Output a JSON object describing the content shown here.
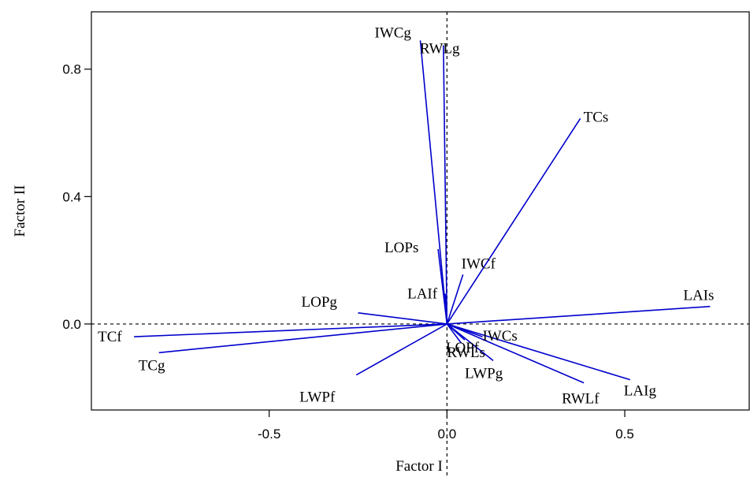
{
  "chart_data": {
    "type": "scatter",
    "subtype": "biplot-vectors",
    "xlabel": "Factor I",
    "ylabel": "Factor II",
    "xlim": [
      -1.0,
      0.85
    ],
    "ylim": [
      -0.27,
      0.98
    ],
    "xticks": [
      {
        "value": -0.5,
        "label": "-0.5"
      },
      {
        "value": 0.0,
        "label": "0.0"
      },
      {
        "value": 0.5,
        "label": "0.5"
      }
    ],
    "yticks": [
      {
        "value": 0.0,
        "label": "0.0"
      },
      {
        "value": 0.4,
        "label": "0.4"
      },
      {
        "value": 0.8,
        "label": "0.8"
      }
    ],
    "reference_lines": {
      "x": 0,
      "y": 0,
      "style": "dashed"
    },
    "vector_color": "#0000cc",
    "vectors": [
      {
        "label": "IWCg",
        "x": -0.075,
        "y": 0.89
      },
      {
        "label": "RWLg",
        "x": -0.01,
        "y": 0.875
      },
      {
        "label": "TCs",
        "x": 0.375,
        "y": 0.645
      },
      {
        "label": "LOPs",
        "x": -0.025,
        "y": 0.235
      },
      {
        "label": "IWCf",
        "x": 0.045,
        "y": 0.155
      },
      {
        "label": "LAIf",
        "x": -0.005,
        "y": 0.095
      },
      {
        "label": "LAIs",
        "x": 0.74,
        "y": 0.055
      },
      {
        "label": "LOPg",
        "x": -0.25,
        "y": 0.035
      },
      {
        "label": "TCf",
        "x": -0.88,
        "y": -0.04
      },
      {
        "label": "TCg",
        "x": -0.81,
        "y": -0.09
      },
      {
        "label": "IWCs",
        "x": 0.1,
        "y": -0.04
      },
      {
        "label": "LOPf",
        "x": 0.05,
        "y": -0.05
      },
      {
        "label": "RWLs",
        "x": 0.04,
        "y": -0.06
      },
      {
        "label": "LWPg",
        "x": 0.13,
        "y": -0.115
      },
      {
        "label": "LWPf",
        "x": -0.255,
        "y": -0.16
      },
      {
        "label": "RWLf",
        "x": 0.385,
        "y": -0.185
      },
      {
        "label": "LAIg",
        "x": 0.515,
        "y": -0.175
      }
    ]
  }
}
